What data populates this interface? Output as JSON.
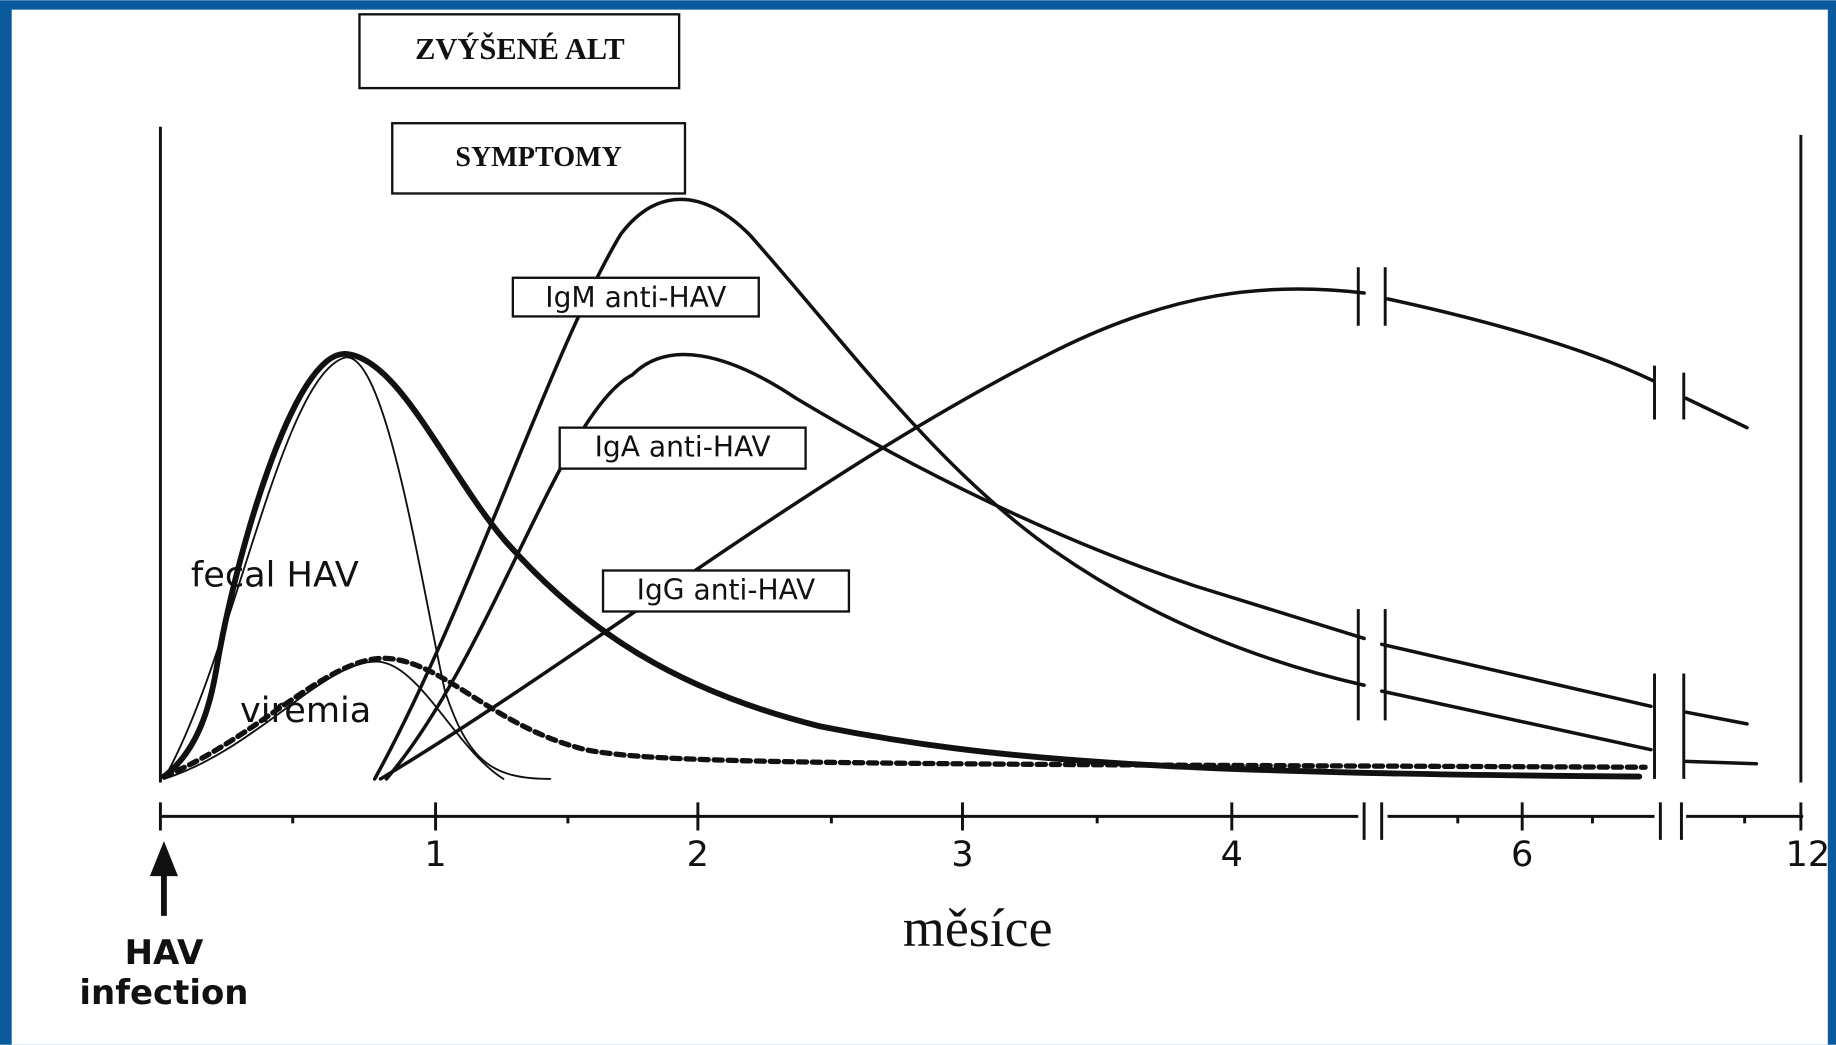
{
  "boxes": [
    "ZVÝŠENÉ ALT",
    "SYMPTOMY"
  ],
  "curve_labels": [
    "IgM anti-HAV",
    "IgA anti-HAV",
    "IgG anti-HAV",
    "fecal HAV",
    "viremia"
  ],
  "x_ticks": [
    "1",
    "2",
    "3",
    "4",
    "6",
    "12"
  ],
  "x_label": "měsíce",
  "infection_label": [
    "HAV",
    "infection"
  ]
}
